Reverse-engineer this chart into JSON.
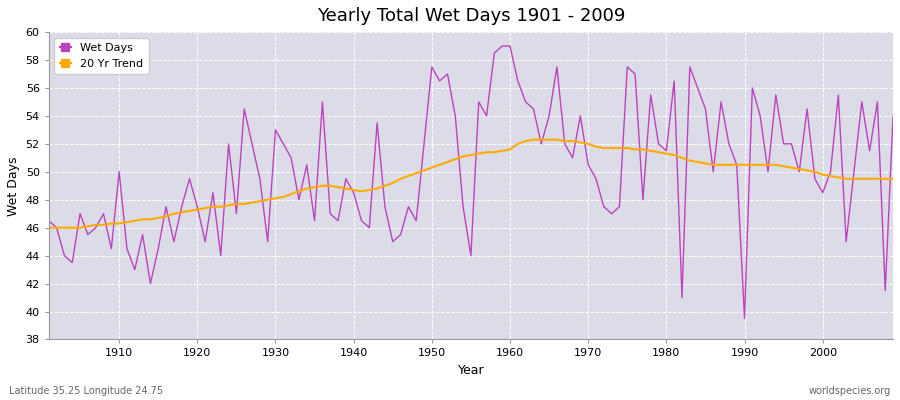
{
  "title": "Yearly Total Wet Days 1901 - 2009",
  "xlabel": "Year",
  "ylabel": "Wet Days",
  "subtitle_left": "Latitude 35.25 Longitude 24.75",
  "subtitle_right": "worldspecies.org",
  "legend_entries": [
    "Wet Days",
    "20 Yr Trend"
  ],
  "wet_days_color": "#bb44bb",
  "trend_color": "#ffaa00",
  "background_color": "#dcdce8",
  "fig_background": "#ffffff",
  "ylim": [
    38,
    60
  ],
  "xlim": [
    1901,
    2009
  ],
  "yticks": [
    38,
    40,
    42,
    44,
    46,
    48,
    50,
    52,
    54,
    56,
    58,
    60
  ],
  "xticks": [
    1910,
    1920,
    1930,
    1940,
    1950,
    1960,
    1970,
    1980,
    1990,
    2000
  ],
  "years": [
    1901,
    1902,
    1903,
    1904,
    1905,
    1906,
    1907,
    1908,
    1909,
    1910,
    1911,
    1912,
    1913,
    1914,
    1915,
    1916,
    1917,
    1918,
    1919,
    1920,
    1921,
    1922,
    1923,
    1924,
    1925,
    1926,
    1927,
    1928,
    1929,
    1930,
    1931,
    1932,
    1933,
    1934,
    1935,
    1936,
    1937,
    1938,
    1939,
    1940,
    1941,
    1942,
    1943,
    1944,
    1945,
    1946,
    1947,
    1948,
    1949,
    1950,
    1951,
    1952,
    1953,
    1954,
    1955,
    1956,
    1957,
    1958,
    1959,
    1960,
    1961,
    1962,
    1963,
    1964,
    1965,
    1966,
    1967,
    1968,
    1969,
    1970,
    1971,
    1972,
    1973,
    1974,
    1975,
    1976,
    1977,
    1978,
    1979,
    1980,
    1981,
    1982,
    1983,
    1984,
    1985,
    1986,
    1987,
    1988,
    1989,
    1990,
    1991,
    1992,
    1993,
    1994,
    1995,
    1996,
    1997,
    1998,
    1999,
    2000,
    2001,
    2002,
    2003,
    2004,
    2005,
    2006,
    2007,
    2008,
    2009
  ],
  "wet_days": [
    46.5,
    46.0,
    44.0,
    43.5,
    47.0,
    45.5,
    46.0,
    47.0,
    44.5,
    50.0,
    44.5,
    43.0,
    45.5,
    42.0,
    44.5,
    47.5,
    45.0,
    47.5,
    49.5,
    47.5,
    45.0,
    48.5,
    44.0,
    52.0,
    47.0,
    54.5,
    52.0,
    49.5,
    45.0,
    53.0,
    52.0,
    51.0,
    48.0,
    50.5,
    46.5,
    55.0,
    47.0,
    46.5,
    49.5,
    48.5,
    46.5,
    46.0,
    53.5,
    47.5,
    45.0,
    45.5,
    47.5,
    46.5,
    52.0,
    57.5,
    56.5,
    57.0,
    54.0,
    47.5,
    44.0,
    55.0,
    54.0,
    58.5,
    59.0,
    59.0,
    56.5,
    55.0,
    54.5,
    52.0,
    54.0,
    57.5,
    52.0,
    51.0,
    54.0,
    50.5,
    49.5,
    47.5,
    47.0,
    47.5,
    57.5,
    57.0,
    48.0,
    55.5,
    52.0,
    51.5,
    56.5,
    41.0,
    57.5,
    56.0,
    54.5,
    50.0,
    55.0,
    52.0,
    50.5,
    39.5,
    56.0,
    54.0,
    50.0,
    55.5,
    52.0,
    52.0,
    50.0,
    54.5,
    49.5,
    48.5,
    50.0,
    55.5,
    45.0,
    50.0,
    55.0,
    51.5,
    55.0,
    41.5,
    54.0
  ],
  "trend_vals": [
    46.0,
    46.0,
    46.0,
    46.0,
    46.0,
    46.1,
    46.2,
    46.2,
    46.3,
    46.3,
    46.4,
    46.5,
    46.6,
    46.6,
    46.7,
    46.8,
    47.0,
    47.1,
    47.2,
    47.3,
    47.4,
    47.5,
    47.5,
    47.6,
    47.7,
    47.7,
    47.8,
    47.9,
    48.0,
    48.1,
    48.2,
    48.4,
    48.6,
    48.8,
    48.9,
    49.0,
    49.0,
    48.9,
    48.8,
    48.7,
    48.6,
    48.7,
    48.8,
    49.0,
    49.2,
    49.5,
    49.7,
    49.9,
    50.1,
    50.3,
    50.5,
    50.7,
    50.9,
    51.1,
    51.2,
    51.3,
    51.4,
    51.4,
    51.5,
    51.6,
    52.0,
    52.2,
    52.3,
    52.3,
    52.3,
    52.3,
    52.2,
    52.2,
    52.1,
    52.0,
    51.8,
    51.7,
    51.7,
    51.7,
    51.7,
    51.6,
    51.6,
    51.5,
    51.4,
    51.3,
    51.2,
    51.0,
    50.8,
    50.7,
    50.6,
    50.5,
    50.5,
    50.5,
    50.5,
    50.5,
    50.5,
    50.5,
    50.5,
    50.5,
    50.4,
    50.3,
    50.2,
    50.1,
    50.0,
    49.8,
    49.7,
    49.6,
    49.5,
    49.5,
    49.5,
    49.5,
    49.5,
    49.5,
    49.5
  ]
}
